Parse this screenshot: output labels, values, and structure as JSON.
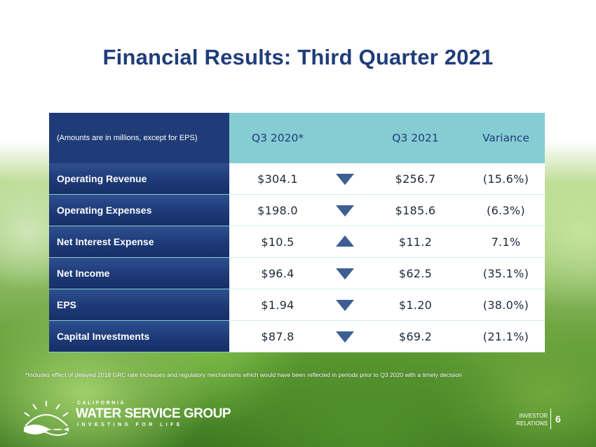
{
  "slide": {
    "title": "Financial Results: Third Quarter 2021",
    "page_number": "6"
  },
  "table": {
    "header": {
      "label": "(Amounts are in millions, except for EPS)",
      "col_q3_2020": "Q3 2020*",
      "col_q3_2021": "Q3 2021",
      "col_variance": "Variance"
    },
    "rows": [
      {
        "label": "Operating Revenue",
        "q3_2020": "$304.1",
        "direction": "down",
        "q3_2021": "$256.7",
        "variance": "(15.6%)"
      },
      {
        "label": "Operating Expenses",
        "q3_2020": "$198.0",
        "direction": "down",
        "q3_2021": "$185.6",
        "variance": "(6.3%)"
      },
      {
        "label": "Net Interest Expense",
        "q3_2020": "$10.5",
        "direction": "up",
        "q3_2021": "$11.2",
        "variance": "7.1%"
      },
      {
        "label": "Net Income",
        "q3_2020": "$96.4",
        "direction": "down",
        "q3_2021": "$62.5",
        "variance": "(35.1%)"
      },
      {
        "label": "EPS",
        "q3_2020": "$1.94",
        "direction": "down",
        "q3_2021": "$1.20",
        "variance": "(38.0%)"
      },
      {
        "label": "Capital Investments",
        "q3_2020": "$87.8",
        "direction": "down",
        "q3_2021": "$69.2",
        "variance": "(21.1%)"
      }
    ]
  },
  "footnote": "*Includes effect of delayed 2018 GRC rate increases and regulatory mechanisms which would have been reflected in periods prior to Q3 2020 with a timely decision",
  "logo": {
    "small_text": "CALIFORNIA",
    "big_text": "WATER SERVICE GROUP",
    "tagline": "INVESTING FOR LIFE"
  },
  "investor_relations": {
    "line1": "INVESTOR",
    "line2": "RELATIONS"
  },
  "colors": {
    "title": "#1f3d7a",
    "label_bg": "#1d3a78",
    "header_bg": "#86cdd3",
    "arrow": "#3a5a8c"
  }
}
